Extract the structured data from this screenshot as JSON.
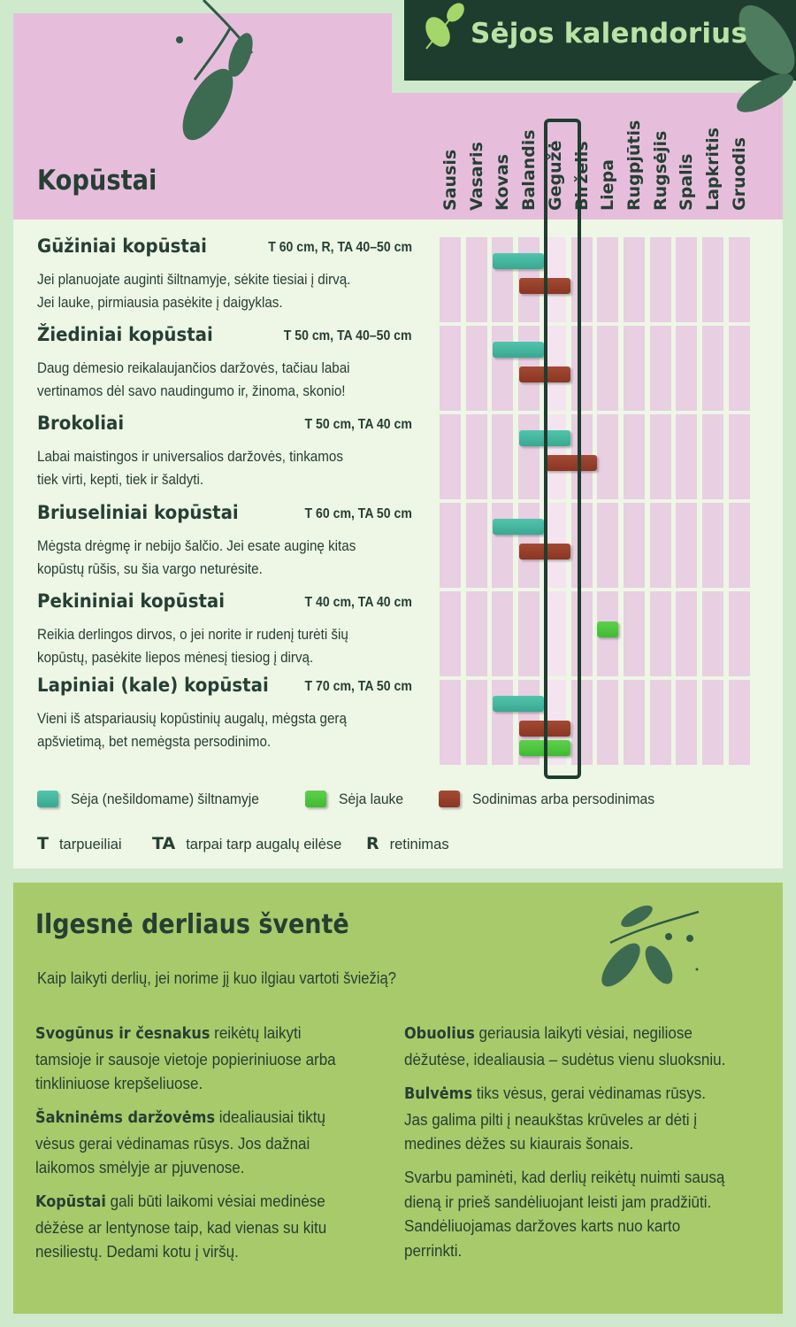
{
  "header": {
    "title": "Sėjos kalendorius",
    "heading": "Kopūstai"
  },
  "months": [
    "Sausis",
    "Vasaris",
    "Kovas",
    "Balandis",
    "Gegužė",
    "Birželis",
    "Liepa",
    "Rugpjūtis",
    "Rugsėjis",
    "Spalis",
    "Lapkritis",
    "Gruodis"
  ],
  "highlighted_month": "Gegužė",
  "vegetables": [
    {
      "name": "Gūžiniai kopūstai",
      "spacing": "T 60 cm, R, TA 40–50 cm",
      "desc1": "Jei planuojate auginti šiltnamyje, sėkite tiesiai į dirvą.",
      "desc2": "Jei lauke, pirmiausia pasėkite į daigyklas.",
      "bars": [
        {
          "type": "teal",
          "start_month": 3,
          "end_month": 4
        },
        {
          "type": "red",
          "start_month": 4,
          "end_month": 5
        }
      ]
    },
    {
      "name": "Žiediniai kopūstai",
      "spacing": "T 50 cm, TA 40–50 cm",
      "desc1": "Daug dėmesio reikalaujančios daržovės, tačiau labai",
      "desc2": "vertinamos dėl savo naudingumo ir, žinoma, skonio!",
      "bars": [
        {
          "type": "teal",
          "start_month": 3,
          "end_month": 4
        },
        {
          "type": "red",
          "start_month": 4,
          "end_month": 5
        }
      ]
    },
    {
      "name": "Brokoliai",
      "spacing": "T 50 cm, TA 40 cm",
      "desc1": "Labai maistingos ir universalios daržovės, tinkamos",
      "desc2": "tiek virti, kepti, tiek ir šaldyti.",
      "bars": [
        {
          "type": "teal",
          "start_month": 4,
          "end_month": 5
        },
        {
          "type": "red",
          "start_month": 5,
          "end_month": 6
        }
      ]
    },
    {
      "name": "Briuseliniai kopūstai",
      "spacing": "T 60 cm, TA 50 cm",
      "desc1": "Mėgsta drėgmę ir nebijo šalčio. Jei esate auginę kitas",
      "desc2": "kopūstų rūšis, su šia vargo neturėsite.",
      "bars": [
        {
          "type": "teal",
          "start_month": 3,
          "end_month": 4
        },
        {
          "type": "red",
          "start_month": 4,
          "end_month": 5
        }
      ]
    },
    {
      "name": "Pekininiai kopūstai",
      "spacing": "T 40 cm, TA 40 cm",
      "desc1": "Reikia derlingos dirvos, o jei norite ir rudenį turėti šių",
      "desc2": "kopūstų, pasėkite liepos mėnesį tiesiog į dirvą.",
      "bars": [
        {
          "type": "green",
          "start_month": 7,
          "end_month": 7
        }
      ]
    },
    {
      "name": "Lapiniai (kale) kopūstai",
      "spacing": "T 70 cm, TA 50 cm",
      "desc1": "Vieni iš atspariausių kopūstinių augalų, mėgsta gerą",
      "desc2": "apšvietimą, bet nemėgsta persodinimo.",
      "bars": [
        {
          "type": "teal",
          "start_month": 3,
          "end_month": 4
        },
        {
          "type": "red",
          "start_month": 4,
          "end_month": 5
        },
        {
          "type": "green",
          "start_month": 4,
          "end_month": 5
        }
      ]
    }
  ],
  "legend": {
    "teal": "Sėja (nešildomame) šiltnamyje",
    "green": "Sėja lauke",
    "red": "Sodinimas arba persodinimas"
  },
  "abbreviations": [
    {
      "key": "T",
      "text": "tarpueiliai"
    },
    {
      "key": "TA",
      "text": "tarpai tarp augalų eilėse"
    },
    {
      "key": "R",
      "text": "retinimas"
    }
  ],
  "colors": {
    "teal": "#3aa892",
    "green": "#3ebb33",
    "red": "#8a3623",
    "dark_green": "#1f3d2e",
    "pink": "#e6bedc",
    "lime": "#a8ca6a"
  },
  "storage": {
    "title": "Ilgesnė derliaus šventė",
    "intro": "Kaip laikyti derlių, jei norime jį kuo ilgiau vartoti šviežią?",
    "tips_left": [
      {
        "bold": "Svogūnus ir česnakus",
        "text": " reikėtų laikyti tamsioje ir sausoje vietoje popieriniuose arba tinkliniuose  krepšeliuose."
      },
      {
        "bold": "Šakninėms daržovėms",
        "text": " idealiausiai tiktų vėsus gerai vėdinamas rūsys. Jos dažnai laikomos smėlyje ar pjuvenose."
      },
      {
        "bold": "Kopūstai",
        "text": " gali būti laikomi vėsiai medinėse dėžėse ar lentynose taip, kad vienas su kitu nesiliestų. Dedami kotu į viršų."
      }
    ],
    "tips_right": [
      {
        "bold": "Obuolius",
        "text": " geriausia laikyti vėsiai, negiliose dėžutėse, idealiausia – sudėtus vienu sluoksniu."
      },
      {
        "bold": "Bulvėms",
        "text": " tiks vėsus, gerai vėdinamas rūsys. Jas galima pilti į neaukštas krūveles ar dėti į medines dėžes su kiaurais šonais."
      },
      {
        "bold": "",
        "text": "Svarbu paminėti, kad derlių reikėtų nuimti sausą dieną ir prieš sandėliuojant leisti jam pradžiūti. Sandėliuojamas daržoves karts nuo karto perrinkti."
      }
    ]
  }
}
